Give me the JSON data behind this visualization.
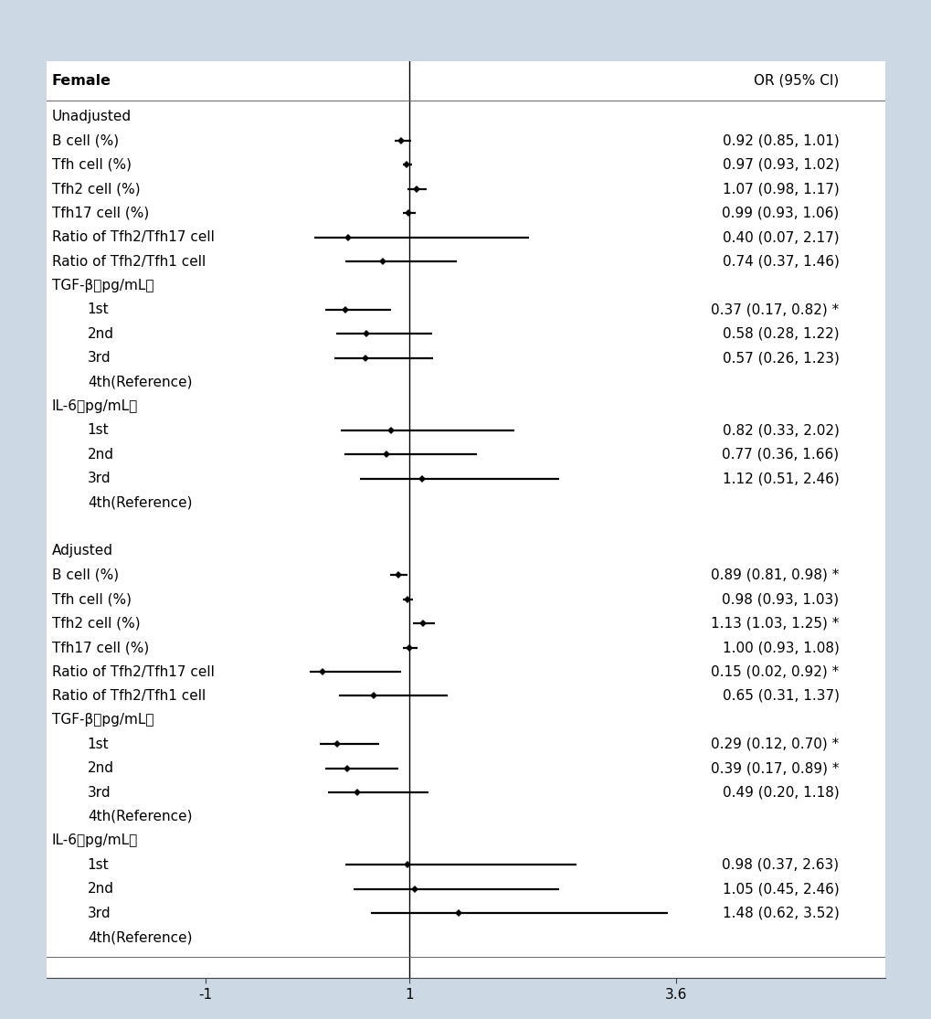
{
  "background_color": "#ccd8e4",
  "plot_bg_color": "#ffffff",
  "header_label": "Female",
  "header_or": "OR (95% CI)",
  "rows": [
    {
      "label": "Unadjusted",
      "or": null,
      "lo": null,
      "hi": null,
      "text": "",
      "indent": 0,
      "section_header": true,
      "ref_row": false,
      "spacer": false
    },
    {
      "label": "B cell (%)",
      "or": 0.92,
      "lo": 0.85,
      "hi": 1.01,
      "text": "0.92 (0.85, 1.01)",
      "indent": 0,
      "section_header": false,
      "ref_row": false,
      "spacer": false
    },
    {
      "label": "Tfh cell (%)",
      "or": 0.97,
      "lo": 0.93,
      "hi": 1.02,
      "text": "0.97 (0.93, 1.02)",
      "indent": 0,
      "section_header": false,
      "ref_row": false,
      "spacer": false
    },
    {
      "label": "Tfh2 cell (%)",
      "or": 1.07,
      "lo": 0.98,
      "hi": 1.17,
      "text": "1.07 (0.98, 1.17)",
      "indent": 0,
      "section_header": false,
      "ref_row": false,
      "spacer": false
    },
    {
      "label": "Tfh17 cell (%)",
      "or": 0.99,
      "lo": 0.93,
      "hi": 1.06,
      "text": "0.99 (0.93, 1.06)",
      "indent": 0,
      "section_header": false,
      "ref_row": false,
      "spacer": false
    },
    {
      "label": "Ratio of Tfh2/Tfh17 cell",
      "or": 0.4,
      "lo": 0.07,
      "hi": 2.17,
      "text": "0.40 (0.07, 2.17)",
      "indent": 0,
      "section_header": false,
      "ref_row": false,
      "spacer": false
    },
    {
      "label": "Ratio of Tfh2/Tfh1 cell",
      "or": 0.74,
      "lo": 0.37,
      "hi": 1.46,
      "text": "0.74 (0.37, 1.46)",
      "indent": 0,
      "section_header": false,
      "ref_row": false,
      "spacer": false
    },
    {
      "label": "TGF-β（pg/mL）",
      "or": null,
      "lo": null,
      "hi": null,
      "text": "",
      "indent": 0,
      "section_header": true,
      "ref_row": false,
      "spacer": false
    },
    {
      "label": "1st",
      "or": 0.37,
      "lo": 0.17,
      "hi": 0.82,
      "text": "0.37 (0.17, 0.82) *",
      "indent": 1,
      "section_header": false,
      "ref_row": false,
      "spacer": false
    },
    {
      "label": "2nd",
      "or": 0.58,
      "lo": 0.28,
      "hi": 1.22,
      "text": "0.58 (0.28, 1.22)",
      "indent": 1,
      "section_header": false,
      "ref_row": false,
      "spacer": false
    },
    {
      "label": "3rd",
      "or": 0.57,
      "lo": 0.26,
      "hi": 1.23,
      "text": "0.57 (0.26, 1.23)",
      "indent": 1,
      "section_header": false,
      "ref_row": false,
      "spacer": false
    },
    {
      "label": "4th(Reference)",
      "or": null,
      "lo": null,
      "hi": null,
      "text": "",
      "indent": 1,
      "section_header": false,
      "ref_row": true,
      "spacer": false
    },
    {
      "label": "IL-6（pg/mL）",
      "or": null,
      "lo": null,
      "hi": null,
      "text": "",
      "indent": 0,
      "section_header": true,
      "ref_row": false,
      "spacer": false
    },
    {
      "label": "1st",
      "or": 0.82,
      "lo": 0.33,
      "hi": 2.02,
      "text": "0.82 (0.33, 2.02)",
      "indent": 1,
      "section_header": false,
      "ref_row": false,
      "spacer": false
    },
    {
      "label": "2nd",
      "or": 0.77,
      "lo": 0.36,
      "hi": 1.66,
      "text": "0.77 (0.36, 1.66)",
      "indent": 1,
      "section_header": false,
      "ref_row": false,
      "spacer": false
    },
    {
      "label": "3rd",
      "or": 1.12,
      "lo": 0.51,
      "hi": 2.46,
      "text": "1.12 (0.51, 2.46)",
      "indent": 1,
      "section_header": false,
      "ref_row": false,
      "spacer": false
    },
    {
      "label": "4th(Reference)",
      "or": null,
      "lo": null,
      "hi": null,
      "text": "",
      "indent": 1,
      "section_header": false,
      "ref_row": true,
      "spacer": false
    },
    {
      "label": "",
      "or": null,
      "lo": null,
      "hi": null,
      "text": "",
      "indent": 0,
      "section_header": false,
      "ref_row": false,
      "spacer": true
    },
    {
      "label": "Adjusted",
      "or": null,
      "lo": null,
      "hi": null,
      "text": "",
      "indent": 0,
      "section_header": true,
      "ref_row": false,
      "spacer": false
    },
    {
      "label": "B cell (%)",
      "or": 0.89,
      "lo": 0.81,
      "hi": 0.98,
      "text": "0.89 (0.81, 0.98) *",
      "indent": 0,
      "section_header": false,
      "ref_row": false,
      "spacer": false
    },
    {
      "label": "Tfh cell (%)",
      "or": 0.98,
      "lo": 0.93,
      "hi": 1.03,
      "text": "0.98 (0.93, 1.03)",
      "indent": 0,
      "section_header": false,
      "ref_row": false,
      "spacer": false
    },
    {
      "label": "Tfh2 cell (%)",
      "or": 1.13,
      "lo": 1.03,
      "hi": 1.25,
      "text": "1.13 (1.03, 1.25) *",
      "indent": 0,
      "section_header": false,
      "ref_row": false,
      "spacer": false
    },
    {
      "label": "Tfh17 cell (%)",
      "or": 1.0,
      "lo": 0.93,
      "hi": 1.08,
      "text": "1.00 (0.93, 1.08)",
      "indent": 0,
      "section_header": false,
      "ref_row": false,
      "spacer": false
    },
    {
      "label": "Ratio of Tfh2/Tfh17 cell",
      "or": 0.15,
      "lo": 0.02,
      "hi": 0.92,
      "text": "0.15 (0.02, 0.92) *",
      "indent": 0,
      "section_header": false,
      "ref_row": false,
      "spacer": false
    },
    {
      "label": "Ratio of Tfh2/Tfh1 cell",
      "or": 0.65,
      "lo": 0.31,
      "hi": 1.37,
      "text": "0.65 (0.31, 1.37)",
      "indent": 0,
      "section_header": false,
      "ref_row": false,
      "spacer": false
    },
    {
      "label": "TGF-β（pg/mL）",
      "or": null,
      "lo": null,
      "hi": null,
      "text": "",
      "indent": 0,
      "section_header": true,
      "ref_row": false,
      "spacer": false
    },
    {
      "label": "1st",
      "or": 0.29,
      "lo": 0.12,
      "hi": 0.7,
      "text": "0.29 (0.12, 0.70) *",
      "indent": 1,
      "section_header": false,
      "ref_row": false,
      "spacer": false
    },
    {
      "label": "2nd",
      "or": 0.39,
      "lo": 0.17,
      "hi": 0.89,
      "text": "0.39 (0.17, 0.89) *",
      "indent": 1,
      "section_header": false,
      "ref_row": false,
      "spacer": false
    },
    {
      "label": "3rd",
      "or": 0.49,
      "lo": 0.2,
      "hi": 1.18,
      "text": "0.49 (0.20, 1.18)",
      "indent": 1,
      "section_header": false,
      "ref_row": false,
      "spacer": false
    },
    {
      "label": "4th(Reference)",
      "or": null,
      "lo": null,
      "hi": null,
      "text": "",
      "indent": 1,
      "section_header": false,
      "ref_row": true,
      "spacer": false
    },
    {
      "label": "IL-6（pg/mL）",
      "or": null,
      "lo": null,
      "hi": null,
      "text": "",
      "indent": 0,
      "section_header": true,
      "ref_row": false,
      "spacer": false
    },
    {
      "label": "1st",
      "or": 0.98,
      "lo": 0.37,
      "hi": 2.63,
      "text": "0.98 (0.37, 2.63)",
      "indent": 1,
      "section_header": false,
      "ref_row": false,
      "spacer": false
    },
    {
      "label": "2nd",
      "or": 1.05,
      "lo": 0.45,
      "hi": 2.46,
      "text": "1.05 (0.45, 2.46)",
      "indent": 1,
      "section_header": false,
      "ref_row": false,
      "spacer": false
    },
    {
      "label": "3rd",
      "or": 1.48,
      "lo": 0.62,
      "hi": 3.52,
      "text": "1.48 (0.62, 3.52)",
      "indent": 1,
      "section_header": false,
      "ref_row": false,
      "spacer": false
    },
    {
      "label": "4th(Reference)",
      "or": null,
      "lo": null,
      "hi": null,
      "text": "",
      "indent": 1,
      "section_header": false,
      "ref_row": true,
      "spacer": false
    }
  ],
  "xmin": -1.0,
  "xmax": 3.6,
  "xticks": [
    -1.0,
    1.0,
    3.6
  ],
  "xticklabels": [
    "-1",
    "1",
    "3.6"
  ],
  "ref_line": 1.0,
  "font_size": 11.0,
  "marker_size": 4,
  "ci_linewidth": 1.6
}
